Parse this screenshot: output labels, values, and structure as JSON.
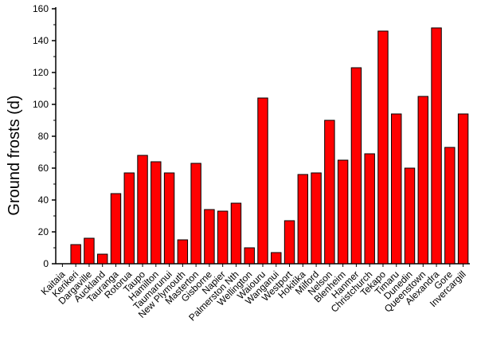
{
  "chart_data": {
    "type": "bar",
    "title": "",
    "xlabel": "",
    "ylabel": "Ground frosts (d)",
    "ylim": [
      0,
      160
    ],
    "yticks": [
      0,
      20,
      40,
      60,
      80,
      100,
      120,
      140,
      160
    ],
    "grid": false,
    "legend": "none",
    "categories": [
      "Kaitaia",
      "Kerikeri",
      "Dargaville",
      "Auckland",
      "Tauranga",
      "Rotorua",
      "Taupo",
      "Hamilton",
      "Taumarunui",
      "New Plymouth",
      "Masterton",
      "Gisborne",
      "Napier",
      "Palmerston Nth",
      "Wellington",
      "Waiouru",
      "Wanganui",
      "Westport",
      "Hokitika",
      "Milford",
      "Nelson",
      "Blenheim",
      "Hanmer",
      "Christchurch",
      "Tekapo",
      "Timaru",
      "Dunedin",
      "Queenstown",
      "Alexandra",
      "Gore",
      "Invercargill"
    ],
    "values": [
      0,
      12,
      16,
      6,
      44,
      57,
      68,
      64,
      57,
      15,
      63,
      34,
      33,
      38,
      10,
      104,
      7,
      27,
      56,
      57,
      90,
      65,
      123,
      69,
      146,
      94,
      60,
      105,
      148,
      73,
      94
    ],
    "bar_color": "#ff0000",
    "bar_edge_color": "#000000"
  }
}
